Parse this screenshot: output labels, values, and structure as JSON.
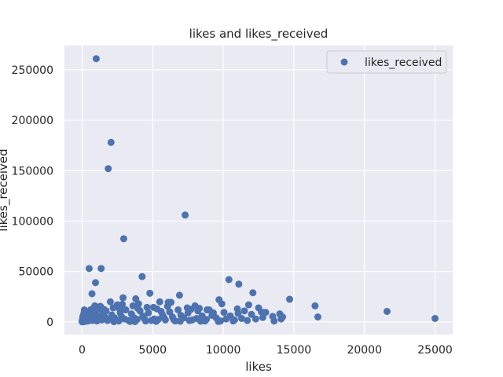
{
  "chart_data": {
    "type": "scatter",
    "title": "likes and likes_received",
    "xlabel": "likes",
    "ylabel": "likes_received",
    "xlim": [
      -1250,
      26250
    ],
    "ylim": [
      -12500,
      274000
    ],
    "xticks": [
      0,
      5000,
      10000,
      15000,
      20000,
      25000
    ],
    "yticks": [
      0,
      50000,
      100000,
      150000,
      200000,
      250000
    ],
    "grid": true,
    "legend_position": "top-right",
    "colors": {
      "point": "#4c72b0",
      "background": "#eaeaf2",
      "grid": "#ffffff"
    },
    "series": [
      {
        "name": "likes_received",
        "points": [
          [
            1000,
            261000
          ],
          [
            2050,
            178000
          ],
          [
            1850,
            152000
          ],
          [
            7300,
            106000
          ],
          [
            2950,
            82500
          ],
          [
            500,
            53000
          ],
          [
            1350,
            53000
          ],
          [
            4250,
            45000
          ],
          [
            950,
            39000
          ],
          [
            10400,
            42000
          ],
          [
            11100,
            37500
          ],
          [
            4800,
            28500
          ],
          [
            700,
            28000
          ],
          [
            6900,
            26500
          ],
          [
            2900,
            24000
          ],
          [
            12100,
            29000
          ],
          [
            14700,
            22500
          ],
          [
            9700,
            22000
          ],
          [
            3800,
            23000
          ],
          [
            5500,
            20000
          ],
          [
            6100,
            19500
          ],
          [
            6300,
            19500
          ],
          [
            2000,
            20000
          ],
          [
            4000,
            18000
          ],
          [
            9900,
            18000
          ],
          [
            11800,
            17000
          ],
          [
            16500,
            16000
          ],
          [
            2500,
            17000
          ],
          [
            8000,
            16000
          ],
          [
            12500,
            14000
          ],
          [
            21600,
            10500
          ],
          [
            25000,
            3500
          ],
          [
            16700,
            5000
          ],
          [
            13500,
            5500
          ],
          [
            13600,
            1000
          ],
          [
            14000,
            8000
          ],
          [
            14200,
            5000
          ],
          [
            12000,
            7500
          ],
          [
            11500,
            11000
          ],
          [
            11000,
            13000
          ],
          [
            10500,
            6000
          ],
          [
            10200,
            3000
          ],
          [
            9500,
            4000
          ],
          [
            9000,
            12000
          ],
          [
            8700,
            1000
          ],
          [
            8500,
            6000
          ],
          [
            8200,
            11000
          ],
          [
            7800,
            2000
          ],
          [
            7500,
            9000
          ],
          [
            7200,
            4000
          ],
          [
            6800,
            12000
          ],
          [
            6600,
            1000
          ],
          [
            6400,
            5000
          ],
          [
            6200,
            10000
          ],
          [
            5900,
            2000
          ],
          [
            5700,
            7000
          ],
          [
            5300,
            13000
          ],
          [
            5100,
            3000
          ],
          [
            4700,
            9000
          ],
          [
            4500,
            1000
          ],
          [
            4300,
            6000
          ],
          [
            4100,
            11000
          ],
          [
            3700,
            4000
          ],
          [
            3500,
            8000
          ],
          [
            3300,
            1500
          ],
          [
            3100,
            12000
          ],
          [
            2800,
            5000
          ],
          [
            2700,
            9000
          ],
          [
            2400,
            2000
          ],
          [
            2200,
            14000
          ],
          [
            2100,
            7000
          ],
          [
            1900,
            3000
          ],
          [
            1700,
            11000
          ],
          [
            1600,
            5000
          ],
          [
            1500,
            8000
          ],
          [
            1400,
            2000
          ],
          [
            1200,
            13000
          ],
          [
            1100,
            6000
          ],
          [
            900,
            16000
          ],
          [
            850,
            3000
          ],
          [
            800,
            9000
          ],
          [
            650,
            5000
          ],
          [
            600,
            12000
          ],
          [
            550,
            2000
          ],
          [
            450,
            7000
          ],
          [
            400,
            3500
          ],
          [
            350,
            1000
          ],
          [
            300,
            8000
          ],
          [
            250,
            4000
          ],
          [
            200,
            11000
          ],
          [
            180,
            2000
          ],
          [
            150,
            6000
          ],
          [
            120,
            500
          ],
          [
            100,
            3000
          ],
          [
            80,
            1500
          ],
          [
            60,
            200
          ],
          [
            50,
            4500
          ],
          [
            40,
            800
          ],
          [
            30,
            2500
          ],
          [
            20,
            100
          ],
          [
            10,
            1000
          ],
          [
            0,
            300
          ],
          [
            70,
            6000
          ],
          [
            130,
            9000
          ],
          [
            220,
            500
          ],
          [
            320,
            2500
          ],
          [
            420,
            1000
          ],
          [
            520,
            4500
          ],
          [
            720,
            1500
          ],
          [
            950,
            7500
          ],
          [
            1050,
            1000
          ],
          [
            1250,
            4000
          ],
          [
            1450,
            10500
          ],
          [
            1800,
            1500
          ],
          [
            2300,
            4000
          ],
          [
            2600,
            1000
          ],
          [
            3000,
            3000
          ],
          [
            3400,
            500
          ],
          [
            3900,
            2500
          ],
          [
            4400,
            3500
          ],
          [
            4900,
            1500
          ],
          [
            5400,
            2500
          ],
          [
            5800,
            4500
          ],
          [
            6500,
            2000
          ],
          [
            7000,
            6500
          ],
          [
            7600,
            1500
          ],
          [
            8100,
            3500
          ],
          [
            8800,
            2500
          ],
          [
            9200,
            6500
          ],
          [
            9800,
            1000
          ],
          [
            10800,
            2000
          ],
          [
            11300,
            3500
          ],
          [
            11700,
            1500
          ],
          [
            12300,
            3000
          ],
          [
            12800,
            4500
          ],
          [
            13000,
            9500
          ],
          [
            9300,
            9000
          ],
          [
            8300,
            13500
          ],
          [
            7700,
            12500
          ],
          [
            5600,
            10500
          ],
          [
            4600,
            14500
          ],
          [
            3600,
            16000
          ],
          [
            2850,
            17500
          ],
          [
            1300,
            15500
          ],
          [
            750,
            13000
          ],
          [
            240,
            9500
          ],
          [
            160,
            12000
          ],
          [
            1550,
            12500
          ],
          [
            2650,
            13000
          ],
          [
            3950,
            13500
          ],
          [
            5050,
            14500
          ],
          [
            6050,
            15500
          ],
          [
            7450,
            14000
          ],
          [
            8850,
            12000
          ],
          [
            10050,
            9500
          ],
          [
            11050,
            8500
          ],
          [
            12700,
            10000
          ],
          [
            14100,
            3000
          ],
          [
            10700,
            1000
          ],
          [
            9650,
            500
          ],
          [
            8400,
            800
          ],
          [
            6950,
            700
          ],
          [
            5250,
            600
          ],
          [
            3750,
            400
          ],
          [
            2250,
            300
          ]
        ]
      }
    ]
  }
}
